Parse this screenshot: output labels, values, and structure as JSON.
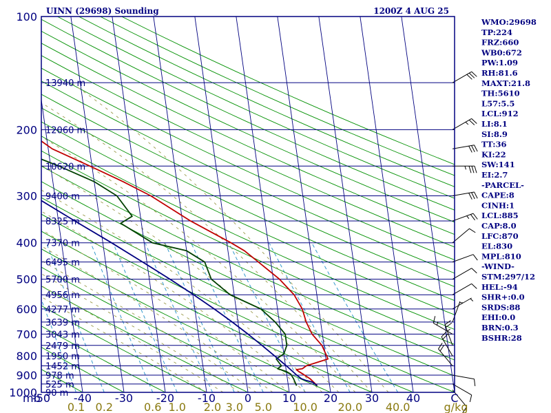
{
  "chart_data": {
    "type": "line",
    "title": "UINN (29698) Sounding",
    "valid_time": "1200Z  4 AUG 25",
    "xlabel": "",
    "ylabel": "",
    "pressure_axis": {
      "unit_label": "mb",
      "range": [
        100,
        1000
      ],
      "log_scale": true,
      "ticks": [
        "100",
        "200",
        "300",
        "400",
        "500",
        "600",
        "700",
        "800",
        "900",
        "1000"
      ]
    },
    "temperature_axis": {
      "range": [
        -50,
        50
      ],
      "ticks": [
        "-50",
        "-40",
        "-30",
        "-20",
        "-10",
        "0",
        "10",
        "20",
        "30",
        "40",
        "C"
      ],
      "tick_values": [
        -50,
        -40,
        -30,
        -20,
        -10,
        0,
        10,
        20,
        30,
        40
      ]
    },
    "mixing_ratio_labels": [
      "0.1",
      "0.2",
      "0.6",
      "1.0",
      "2.0",
      "3.0",
      "5.0",
      "10.0",
      "20.0",
      "40.0",
      "g/kg"
    ],
    "mixing_ratio_values": [
      0.1,
      0.2,
      0.6,
      1.0,
      2.0,
      3.0,
      5.0,
      10.0,
      20.0,
      40.0
    ],
    "height_levels": [
      {
        "p": 150,
        "label": "13940 m"
      },
      {
        "p": 200,
        "label": "12060 m"
      },
      {
        "p": 250,
        "label": "10620 m"
      },
      {
        "p": 300,
        "label": "9400 m"
      },
      {
        "p": 350,
        "label": "8325 m"
      },
      {
        "p": 400,
        "label": "7370 m"
      },
      {
        "p": 450,
        "label": "6495 m"
      },
      {
        "p": 500,
        "label": "5700 m"
      },
      {
        "p": 550,
        "label": "4956 m"
      },
      {
        "p": 600,
        "label": "4277 m"
      },
      {
        "p": 650,
        "label": "3639 m"
      },
      {
        "p": 700,
        "label": "3043 m"
      },
      {
        "p": 750,
        "label": "2479 m"
      },
      {
        "p": 800,
        "label": "1950 m"
      },
      {
        "p": 850,
        "label": "1452 m"
      },
      {
        "p": 900,
        "label": "978 m"
      },
      {
        "p": 950,
        "label": "525 m"
      },
      {
        "p": 1000,
        "label": "90 m"
      }
    ],
    "series": [
      {
        "key": "temperature",
        "color": "#c00000",
        "points": [
          [
            960,
            17.0
          ],
          [
            920,
            15.5
          ],
          [
            895,
            14.0
          ],
          [
            880,
            13.0
          ],
          [
            870,
            12.5
          ],
          [
            865,
            14.0
          ],
          [
            850,
            15.0
          ],
          [
            815,
            20.5
          ],
          [
            800,
            20.3
          ],
          [
            750,
            19.5
          ],
          [
            700,
            17.5
          ],
          [
            650,
            16.5
          ],
          [
            600,
            16.0
          ],
          [
            550,
            14.5
          ],
          [
            500,
            11.5
          ],
          [
            450,
            7.0
          ],
          [
            420,
            4.0
          ],
          [
            400,
            1.0
          ],
          [
            350,
            -8.0
          ],
          [
            300,
            -16.8
          ],
          [
            275,
            -23.0
          ],
          [
            250,
            -30.5
          ],
          [
            225,
            -39.0
          ],
          [
            212,
            -42.0
          ],
          [
            200,
            -41.0
          ],
          [
            180,
            -44.0
          ],
          [
            160,
            -46.5
          ],
          [
            145,
            -48.5
          ]
        ]
      },
      {
        "key": "dewpoint",
        "color": "#004000",
        "points": [
          [
            960,
            12.0
          ],
          [
            920,
            11.5
          ],
          [
            895,
            11.0
          ],
          [
            880,
            10.0
          ],
          [
            865,
            8.0
          ],
          [
            850,
            9.0
          ],
          [
            815,
            8.0
          ],
          [
            790,
            10.0
          ],
          [
            750,
            11.0
          ],
          [
            700,
            11.0
          ],
          [
            650,
            9.0
          ],
          [
            600,
            6.0
          ],
          [
            550,
            -1.0
          ],
          [
            500,
            -5.0
          ],
          [
            450,
            -6.0
          ],
          [
            420,
            -10.0
          ],
          [
            400,
            -18.0
          ],
          [
            355,
            -25.0
          ],
          [
            340,
            -22.0
          ],
          [
            300,
            -25.0
          ],
          [
            275,
            -30.0
          ],
          [
            250,
            -38.0
          ],
          [
            225,
            -48.0
          ],
          [
            212,
            -54.0
          ],
          [
            200,
            -53.0
          ],
          [
            180,
            -57.0
          ],
          [
            160,
            -61.0
          ],
          [
            145,
            -65.0
          ]
        ]
      },
      {
        "key": "parcel",
        "color": "#000080",
        "points": [
          [
            960,
            17.0
          ],
          [
            940,
            16.0
          ],
          [
            930,
            14.5
          ],
          [
            920,
            13.4
          ],
          [
            900,
            12.4
          ],
          [
            850,
            10.2
          ],
          [
            800,
            7.7
          ],
          [
            750,
            5.0
          ],
          [
            700,
            2.0
          ],
          [
            650,
            -1.4
          ],
          [
            600,
            -5.3
          ],
          [
            550,
            -9.8
          ],
          [
            500,
            -15.0
          ],
          [
            450,
            -21.0
          ],
          [
            400,
            -27.9
          ],
          [
            350,
            -36.0
          ],
          [
            300,
            -45.2
          ],
          [
            250,
            -56.0
          ],
          [
            200,
            -68.5
          ],
          [
            150,
            -84.5
          ],
          [
            120,
            -96.0
          ]
        ]
      }
    ],
    "wind_barbs": [
      {
        "p": 985,
        "dir": 140,
        "kt": 10
      },
      {
        "p": 950,
        "dir": 120,
        "kt": 10
      },
      {
        "p": 900,
        "dir": 100,
        "kt": 10
      },
      {
        "p": 850,
        "dir": 320,
        "kt": 20
      },
      {
        "p": 800,
        "dir": 330,
        "kt": 20
      },
      {
        "p": 750,
        "dir": 340,
        "kt": 25
      },
      {
        "p": 700,
        "dir": 300,
        "kt": 15
      },
      {
        "p": 650,
        "dir": 20,
        "kt": 5
      },
      {
        "p": 600,
        "dir": 60,
        "kt": 5
      },
      {
        "p": 550,
        "dir": 60,
        "kt": 10
      },
      {
        "p": 500,
        "dir": 60,
        "kt": 10
      },
      {
        "p": 450,
        "dir": 70,
        "kt": 10
      },
      {
        "p": 400,
        "dir": 50,
        "kt": 10
      },
      {
        "p": 350,
        "dir": 70,
        "kt": 25
      },
      {
        "p": 300,
        "dir": 80,
        "kt": 30
      },
      {
        "p": 250,
        "dir": 90,
        "kt": 35
      },
      {
        "p": 225,
        "dir": 80,
        "kt": 30
      },
      {
        "p": 200,
        "dir": 60,
        "kt": 25
      },
      {
        "p": 150,
        "dir": 60,
        "kt": 30
      }
    ],
    "grid": true,
    "legend": "none"
  },
  "indices": [
    "WMO:29698",
    "TP:224",
    "FRZ:660",
    "WB0:672",
    "PW:1.09",
    "RH:81.6",
    "MAXT:21.8",
    "TH:5610",
    "L57:5.5",
    "LCL:912",
    "LI:8.1",
    "SI:8.9",
    "TT:36",
    "KI:22",
    "SW:141",
    "EI:2.7",
    "-PARCEL-",
    "CAPE:8",
    "CINH:1",
    "LCL:885",
    "CAP:8.0",
    "LFC:870",
    "EL:830",
    "MPL:810",
    "-WIND-",
    "STM:297/12",
    "HEL:-94",
    "SHR+:0.0",
    "SRDS:88",
    "EHI:0.0",
    "BRN:0.3",
    "BSHR:28"
  ],
  "colors": {
    "frame": "#000080",
    "isobar": "#000080",
    "isotherm": "#000080",
    "dry_adiabat": "#009000",
    "moist_adiabat": "#9a9a4a",
    "mixing_ratio": "#3399cc",
    "temperature": "#c00000",
    "dewpoint": "#004000",
    "parcel": "#000080",
    "mix_label": "#8a7a10"
  }
}
